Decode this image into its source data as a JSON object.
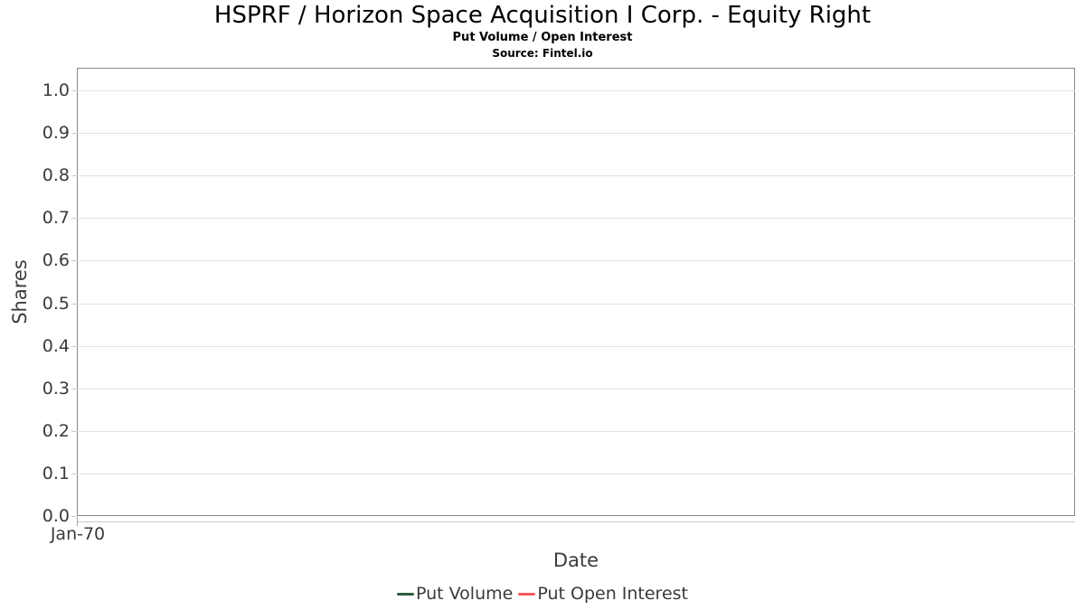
{
  "chart_data": {
    "type": "line",
    "title": "HSPRF / Horizon Space Acquisition I Corp. - Equity Right",
    "subtitle": "Put Volume / Open Interest",
    "source": "Source: Fintel.io",
    "xlabel": "Date",
    "ylabel": "Shares",
    "x_ticks": [
      "Jan-70"
    ],
    "y_ticks": [
      "1.0",
      "0.9",
      "0.8",
      "0.7",
      "0.6",
      "0.5",
      "0.4",
      "0.3",
      "0.2",
      "0.1",
      "0.0"
    ],
    "ylim": [
      0.0,
      1.05
    ],
    "grid": "horizontal",
    "legend_position": "bottom",
    "series": [
      {
        "name": "Put Volume",
        "color": "#2e5e40",
        "x": [],
        "values": []
      },
      {
        "name": "Put Open Interest",
        "color": "#f4595f",
        "x": [],
        "values": []
      }
    ],
    "colors": {
      "plot_border": "#878787",
      "gridline": "#e2e2e2",
      "tick": "#cccccc",
      "tick_label": "#3a3a3a",
      "axis_title": "#3c3c3c",
      "title_text": "#000000"
    }
  }
}
